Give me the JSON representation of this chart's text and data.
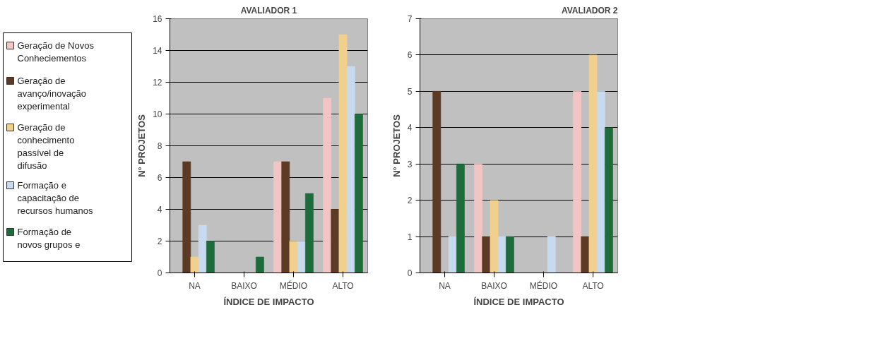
{
  "chart_data": [
    {
      "type": "bar",
      "title": "AVALIADOR 1",
      "xlabel": "ÍNDICE DE IMPACTO",
      "ylabel": "N° PROJETOS",
      "categories": [
        "NA",
        "BAIXO",
        "MÉDIO",
        "ALTO"
      ],
      "ylim": [
        0,
        16
      ],
      "yticks": [
        0,
        2,
        4,
        6,
        8,
        10,
        12,
        14,
        16
      ],
      "grid": "y",
      "legend": "left",
      "series": [
        {
          "name": "Geração de Novos Conheciementos",
          "color": "#f2c4c4",
          "values": [
            0,
            0,
            7,
            11
          ]
        },
        {
          "name": "Geração de avanço/inovação experimental",
          "color": "#5c3a24",
          "values": [
            7,
            0,
            7,
            4
          ]
        },
        {
          "name": "Geração de conhecimento passível de difusão",
          "color": "#f0d08c",
          "values": [
            1,
            0,
            2,
            15
          ]
        },
        {
          "name": "Formação e capacitação de recursos humanos",
          "color": "#c8daf0",
          "values": [
            3,
            0,
            2,
            13
          ]
        },
        {
          "name": "Formação de novos grupos e",
          "color": "#1e6b3c",
          "values": [
            2,
            1,
            5,
            10
          ]
        }
      ]
    },
    {
      "type": "bar",
      "title": "AVALIADOR 2",
      "xlabel": "ÍNDICE DE IMPACTO",
      "ylabel": "N° PROJETOS",
      "categories": [
        "NA",
        "BAIXO",
        "MÉDIO",
        "ALTO"
      ],
      "ylim": [
        0,
        7
      ],
      "yticks": [
        0,
        1,
        2,
        3,
        4,
        5,
        6,
        7
      ],
      "grid": "y",
      "series": [
        {
          "color": "#f2c4c4",
          "values": [
            0,
            3,
            0,
            5
          ]
        },
        {
          "color": "#5c3a24",
          "values": [
            5,
            1,
            0,
            1
          ]
        },
        {
          "color": "#f0d08c",
          "values": [
            0,
            2,
            0,
            6
          ]
        },
        {
          "color": "#c8daf0",
          "values": [
            1,
            1,
            1,
            5
          ]
        },
        {
          "color": "#1e6b3c",
          "values": [
            3,
            1,
            0,
            4
          ]
        }
      ]
    }
  ]
}
